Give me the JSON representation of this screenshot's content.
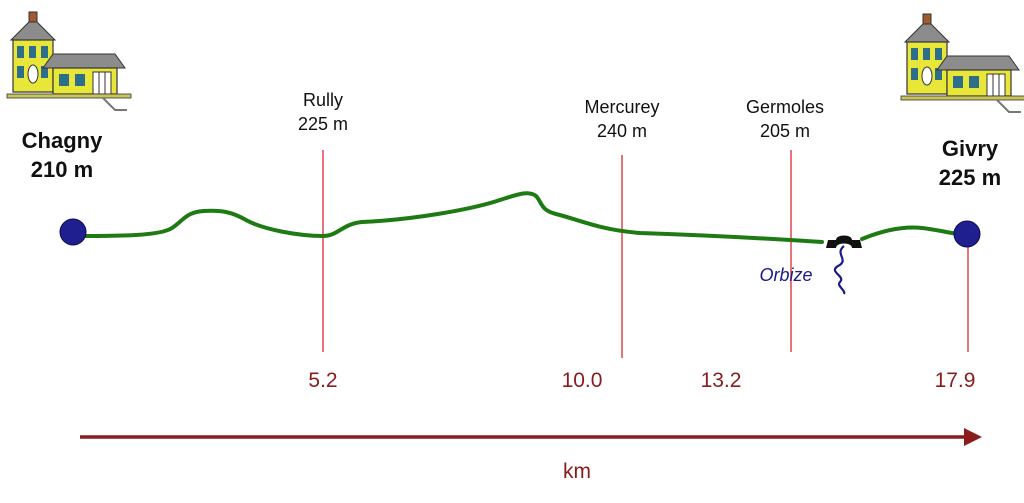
{
  "route": {
    "start": {
      "name": "Chagny",
      "altitude": "210 m"
    },
    "end": {
      "name": "Givry",
      "altitude": "225 m"
    },
    "waypoints": [
      {
        "name": "Rully",
        "altitude": "225 m",
        "km": "5.2"
      },
      {
        "name": "Mercurey",
        "altitude": "240 m",
        "km": "10.0"
      },
      {
        "name": "Germoles",
        "altitude": "205 m",
        "km": "13.2"
      }
    ],
    "end_km": "17.9",
    "stream": "Orbize",
    "axis_unit": "km"
  },
  "colors": {
    "profile_line": "#1e7a12",
    "marker_line": "#e0474c",
    "endpoint": "#1f1f8f",
    "axis": "#8a1c1c",
    "stream": "#1a1a8c",
    "house_body": "#e9e63a",
    "house_roof": "#8c8c8c"
  },
  "icons": [
    "house-icon",
    "bridge-icon"
  ]
}
